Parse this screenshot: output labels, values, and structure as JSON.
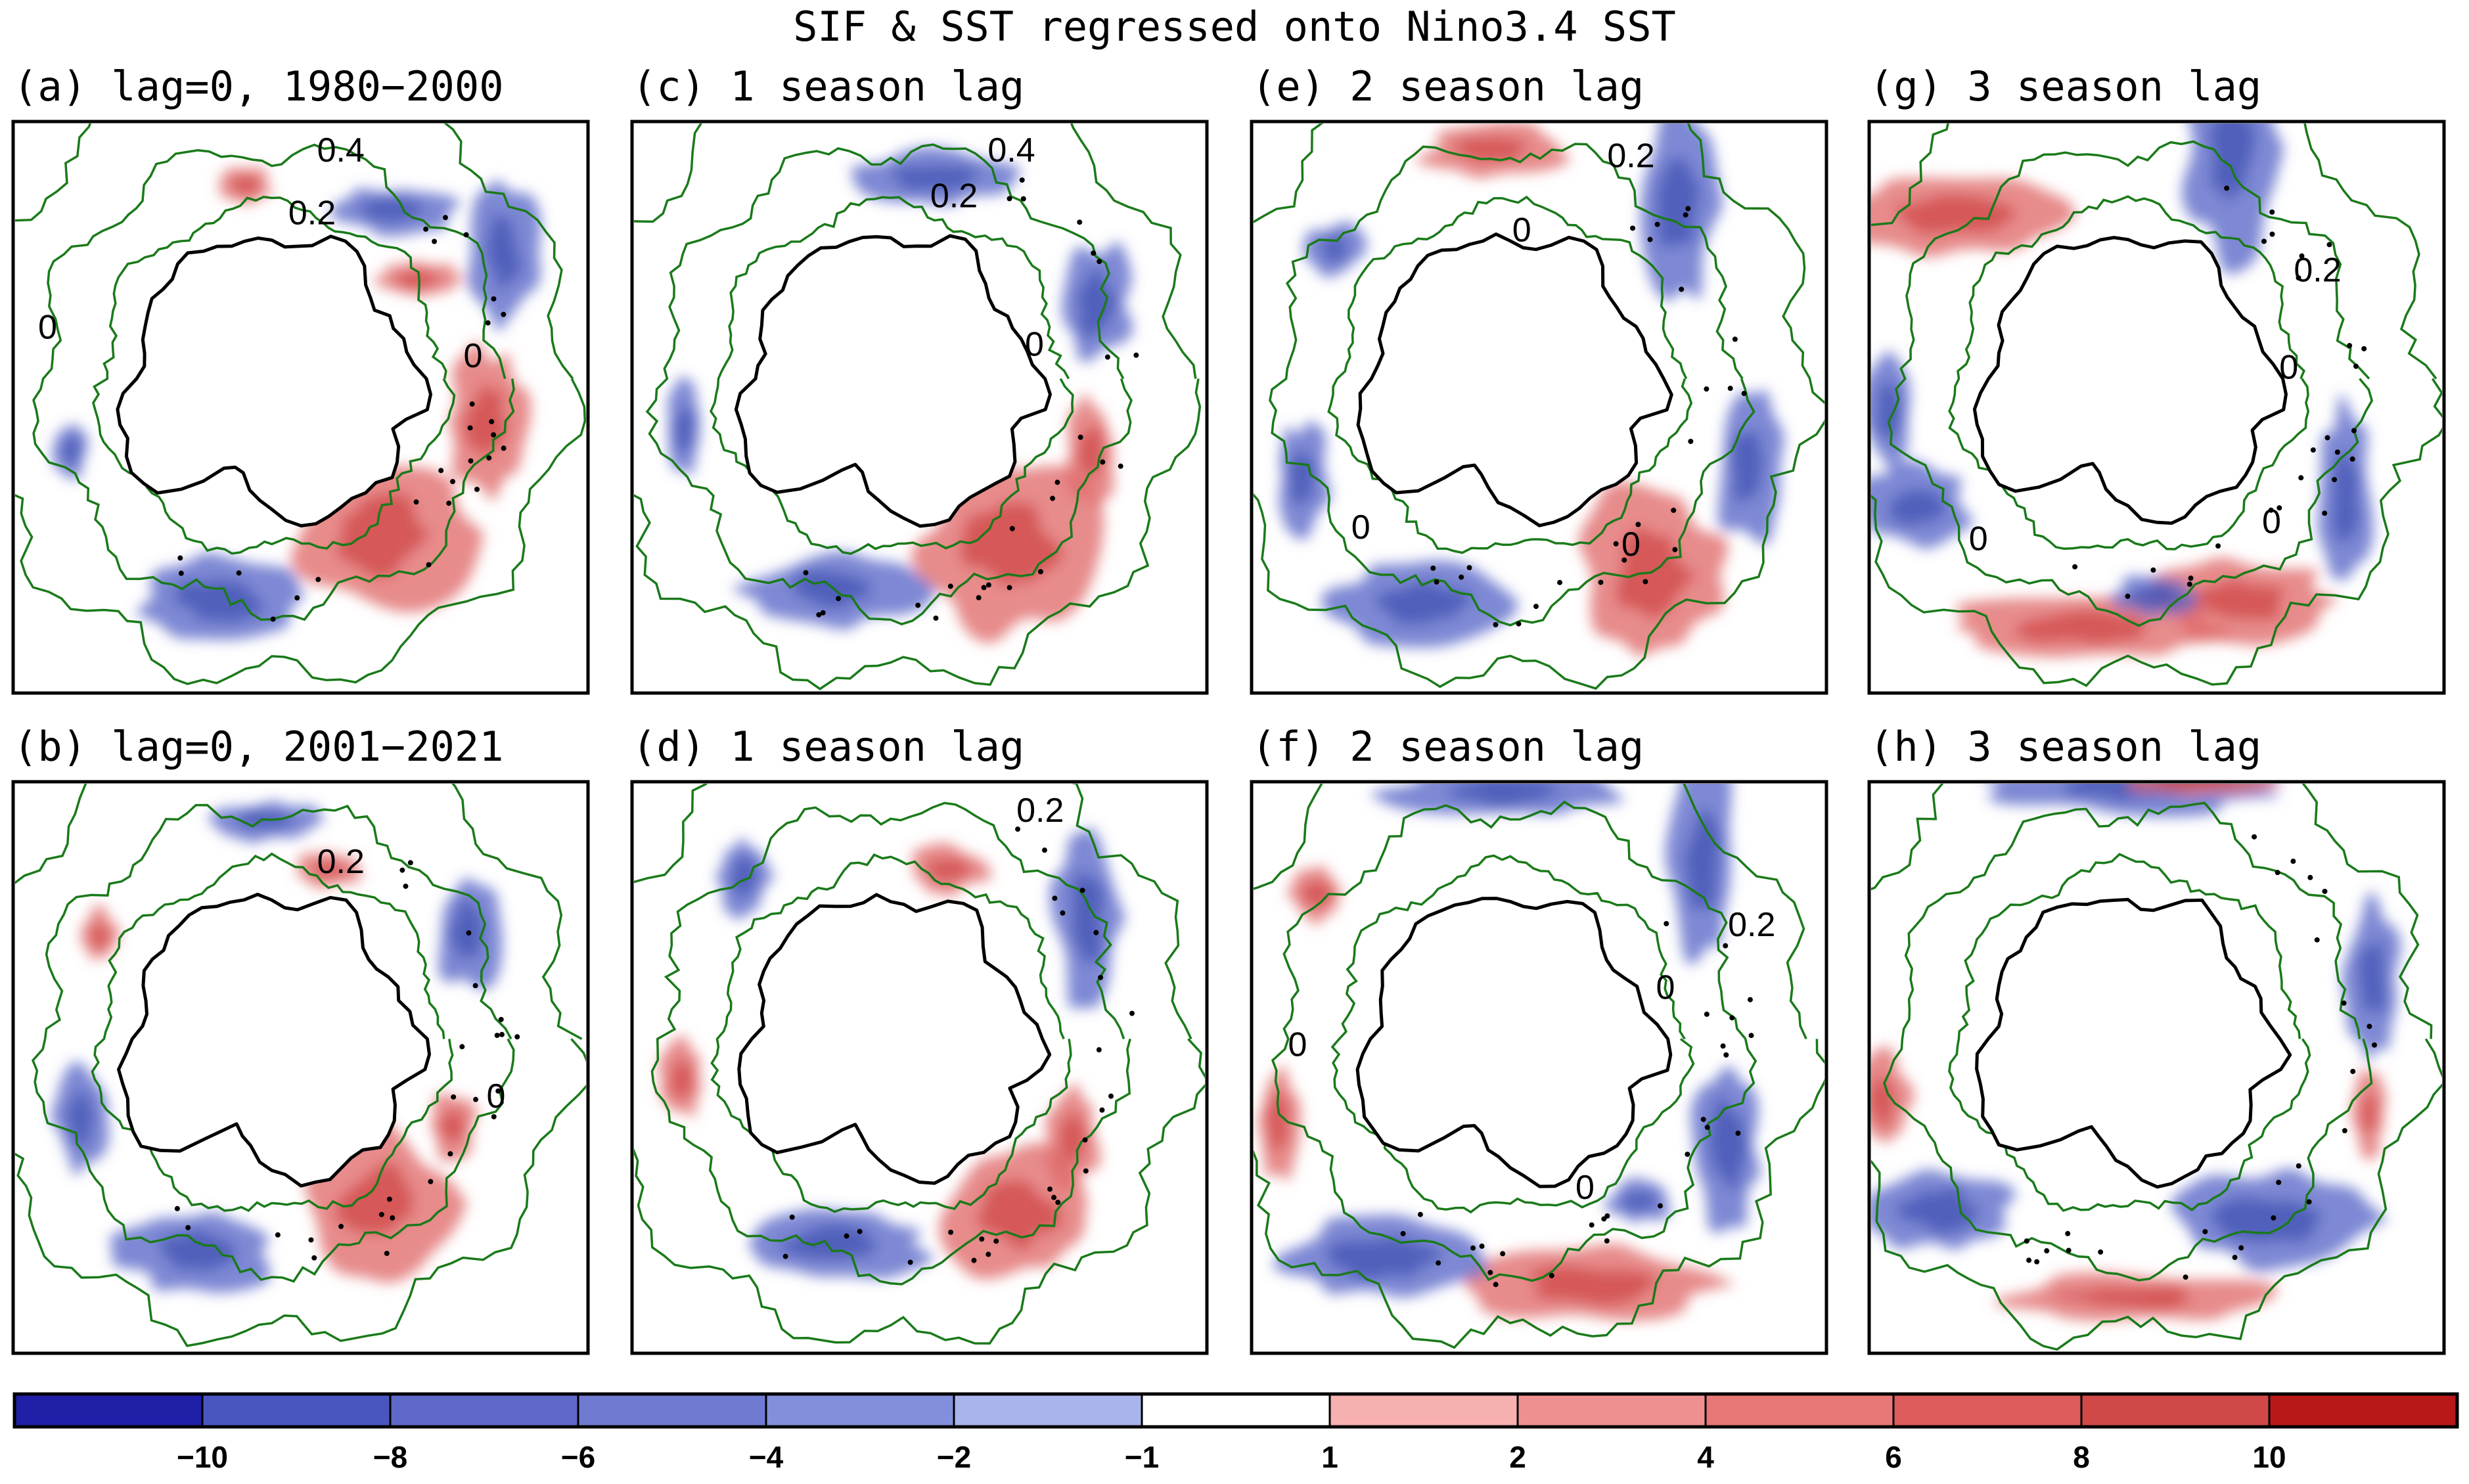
{
  "chart_data": {
    "type": "heatmap",
    "title": "SIF & SST regressed onto Nino3.4 SST",
    "projection": "south-polar-stereographic",
    "grid": false,
    "panels": [
      {
        "id": "a",
        "label": "(a) lag=0, 1980−2000",
        "sst_contour_labels": [
          "0.4",
          "0.2",
          "0",
          "0"
        ]
      },
      {
        "id": "c",
        "label": "(c) 1 season lag",
        "sst_contour_labels": [
          "0.4",
          "0.2",
          "0"
        ]
      },
      {
        "id": "e",
        "label": "(e) 2 season lag",
        "sst_contour_labels": [
          "0.2",
          "0",
          "0",
          "0"
        ]
      },
      {
        "id": "g",
        "label": "(g) 3 season lag",
        "sst_contour_labels": [
          "0.2",
          "0",
          "0",
          "0"
        ]
      },
      {
        "id": "b",
        "label": "(b) lag=0, 2001−2021",
        "sst_contour_labels": [
          "0.2",
          "0"
        ]
      },
      {
        "id": "d",
        "label": "(d) 1 season lag",
        "sst_contour_labels": [
          "0.2"
        ]
      },
      {
        "id": "f",
        "label": "(f) 2 season lag",
        "sst_contour_labels": [
          "0.2",
          "0",
          "0",
          "0"
        ]
      },
      {
        "id": "h",
        "label": "(h) 3 season lag",
        "sst_contour_labels": []
      }
    ],
    "colorbar": {
      "tick_labels": [
        "−10",
        "−8",
        "−6",
        "−4",
        "−2",
        "−1",
        "1",
        "2",
        "4",
        "6",
        "8",
        "10"
      ],
      "colors": [
        "#1f1fa8",
        "#4a56c0",
        "#5f69c8",
        "#6f7bd0",
        "#8290dc",
        "#aab4ec",
        "#ffffff",
        "#f7b0b0",
        "#ef9090",
        "#e87878",
        "#dc5c5c",
        "#d04848",
        "#b81818"
      ]
    },
    "colors": {
      "negative": "#5a66c8",
      "positive": "#e06a6a",
      "contour": "#1a7a1a",
      "land": "#ffffff",
      "coast": "#000000"
    }
  }
}
